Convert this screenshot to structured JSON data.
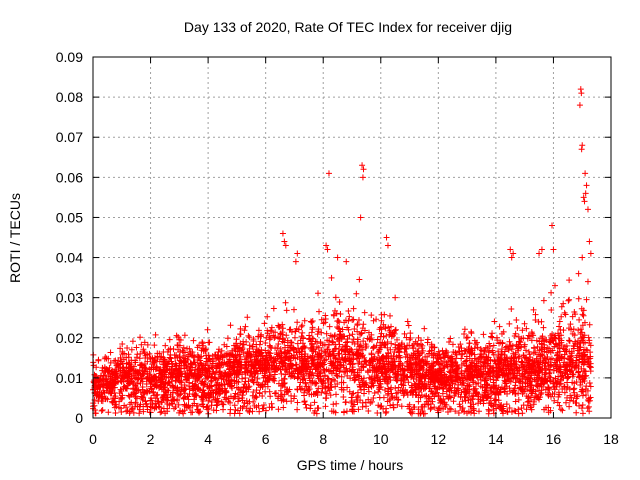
{
  "chart_data": {
    "type": "scatter",
    "title": "Day 133 of 2020, Rate Of TEC Index for receiver djig",
    "xlabel": "GPS time / hours",
    "ylabel": "ROTI / TECUs",
    "xlim": [
      0,
      18
    ],
    "ylim": [
      0,
      0.09
    ],
    "grid": true,
    "marker": "+",
    "x_ticks": [
      "0",
      "2",
      "4",
      "6",
      "8",
      "10",
      "12",
      "14",
      "16",
      "18"
    ],
    "y_ticks": [
      "0",
      "0.01",
      "0.02",
      "0.03",
      "0.04",
      "0.05",
      "0.06",
      "0.07",
      "0.08",
      "0.09"
    ],
    "series": [
      {
        "name": "ROTI",
        "color": "#ff0000",
        "envelope": {
          "x": [
            0,
            0.5,
            1,
            1.5,
            2,
            2.5,
            3,
            3.5,
            4,
            4.5,
            5,
            5.5,
            6,
            6.5,
            7,
            7.5,
            8,
            8.5,
            9,
            9.5,
            10,
            10.5,
            11,
            11.5,
            12,
            12.5,
            13,
            13.5,
            14,
            14.5,
            15,
            15.5,
            16,
            16.5,
            17,
            17.3
          ],
          "typical": [
            0.007,
            0.008,
            0.009,
            0.009,
            0.009,
            0.009,
            0.01,
            0.01,
            0.01,
            0.01,
            0.011,
            0.011,
            0.011,
            0.012,
            0.012,
            0.012,
            0.013,
            0.013,
            0.013,
            0.012,
            0.012,
            0.011,
            0.011,
            0.01,
            0.009,
            0.009,
            0.01,
            0.01,
            0.01,
            0.011,
            0.011,
            0.011,
            0.012,
            0.012,
            0.013,
            0.012
          ],
          "upper": [
            0.012,
            0.014,
            0.017,
            0.018,
            0.017,
            0.018,
            0.022,
            0.02,
            0.022,
            0.021,
            0.025,
            0.024,
            0.028,
            0.032,
            0.03,
            0.027,
            0.035,
            0.038,
            0.04,
            0.033,
            0.03,
            0.025,
            0.022,
            0.02,
            0.018,
            0.02,
            0.028,
            0.025,
            0.025,
            0.032,
            0.026,
            0.03,
            0.035,
            0.035,
            0.045,
            0.034
          ]
        },
        "peaks": [
          [
            6.6,
            0.046
          ],
          [
            6.65,
            0.044
          ],
          [
            6.7,
            0.043
          ],
          [
            7.1,
            0.041
          ],
          [
            7.05,
            0.039
          ],
          [
            8.2,
            0.061
          ],
          [
            8.1,
            0.043
          ],
          [
            8.15,
            0.042
          ],
          [
            8.5,
            0.04
          ],
          [
            8.8,
            0.039
          ],
          [
            9.35,
            0.063
          ],
          [
            9.4,
            0.062
          ],
          [
            9.38,
            0.06
          ],
          [
            9.3,
            0.05
          ],
          [
            10.2,
            0.045
          ],
          [
            10.25,
            0.043
          ],
          [
            10.5,
            0.03
          ],
          [
            14.5,
            0.042
          ],
          [
            14.6,
            0.041
          ],
          [
            14.55,
            0.04
          ],
          [
            15.5,
            0.041
          ],
          [
            15.6,
            0.042
          ],
          [
            15.95,
            0.048
          ],
          [
            16.0,
            0.042
          ],
          [
            16.95,
            0.082
          ],
          [
            16.97,
            0.081
          ],
          [
            16.92,
            0.078
          ],
          [
            17.0,
            0.068
          ],
          [
            16.98,
            0.067
          ],
          [
            17.1,
            0.061
          ],
          [
            17.15,
            0.058
          ],
          [
            17.12,
            0.056
          ],
          [
            17.05,
            0.055
          ],
          [
            17.08,
            0.054
          ],
          [
            17.2,
            0.052
          ],
          [
            17.25,
            0.044
          ],
          [
            17.3,
            0.041
          ],
          [
            17.0,
            0.04
          ],
          [
            17.2,
            0.034
          ]
        ]
      }
    ]
  }
}
